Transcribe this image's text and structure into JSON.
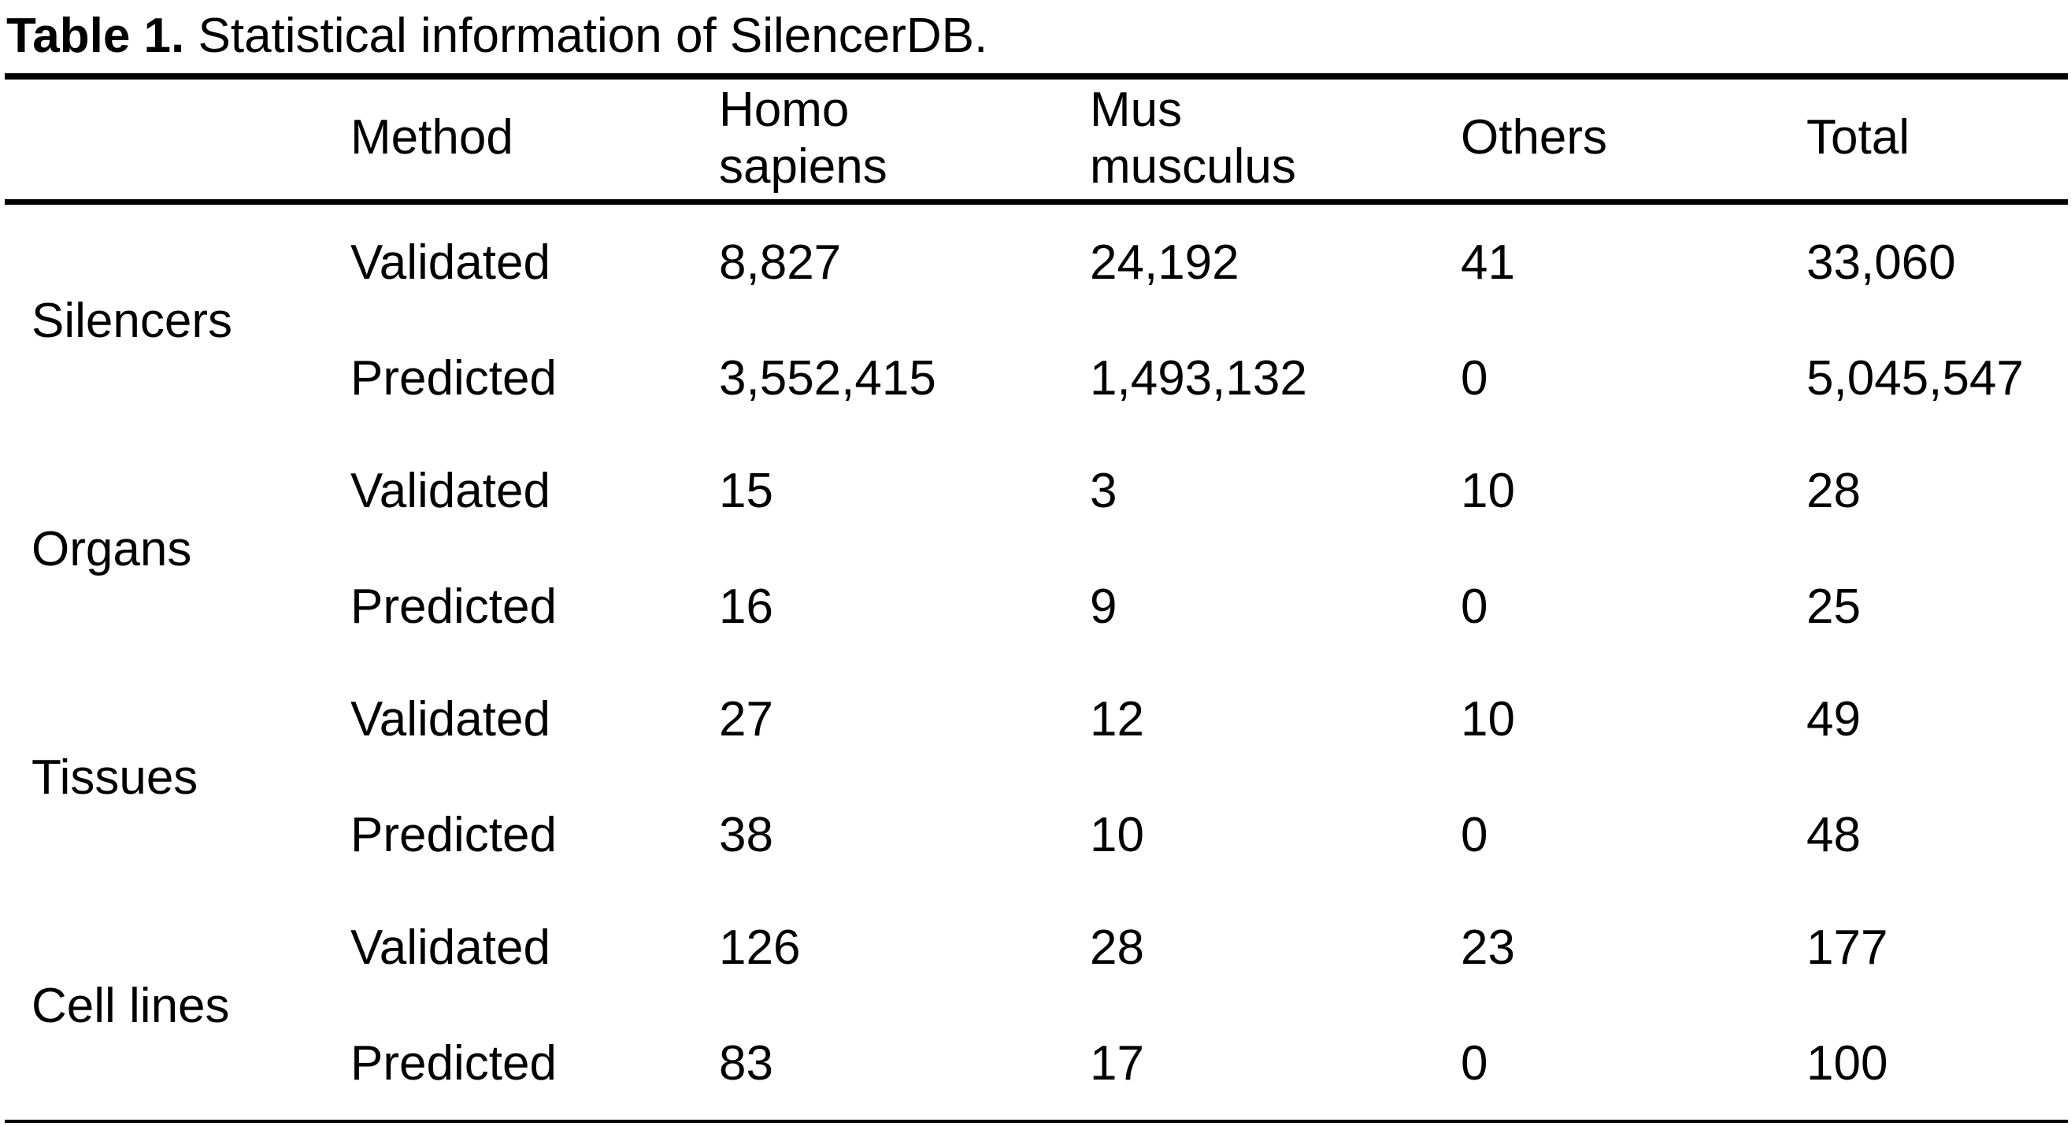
{
  "caption": {
    "label": "Table 1.",
    "text": " Statistical information of SilencerDB."
  },
  "table": {
    "headers": {
      "category": "",
      "method": "Method",
      "homo_line1": "Homo",
      "homo_line2": "sapiens",
      "mus_line1": "Mus",
      "mus_line2": "musculus",
      "others": "Others",
      "total": "Total"
    },
    "groups": [
      {
        "name": "Silencers",
        "rows": [
          {
            "method": "Validated",
            "homo": "8,827",
            "mus": "24,192",
            "others": "41",
            "total": "33,060"
          },
          {
            "method": "Predicted",
            "homo": "3,552,415",
            "mus": "1,493,132",
            "others": "0",
            "total": "5,045,547"
          }
        ]
      },
      {
        "name": "Organs",
        "rows": [
          {
            "method": "Validated",
            "homo": "15",
            "mus": "3",
            "others": "10",
            "total": "28"
          },
          {
            "method": "Predicted",
            "homo": "16",
            "mus": "9",
            "others": "0",
            "total": "25"
          }
        ]
      },
      {
        "name": "Tissues",
        "rows": [
          {
            "method": "Validated",
            "homo": "27",
            "mus": "12",
            "others": "10",
            "total": "49"
          },
          {
            "method": "Predicted",
            "homo": "38",
            "mus": "10",
            "others": "0",
            "total": "48"
          }
        ]
      },
      {
        "name": "Cell lines",
        "rows": [
          {
            "method": "Validated",
            "homo": "126",
            "mus": "28",
            "others": "23",
            "total": "177"
          },
          {
            "method": "Predicted",
            "homo": "83",
            "mus": "17",
            "others": "0",
            "total": "100"
          }
        ]
      }
    ]
  }
}
